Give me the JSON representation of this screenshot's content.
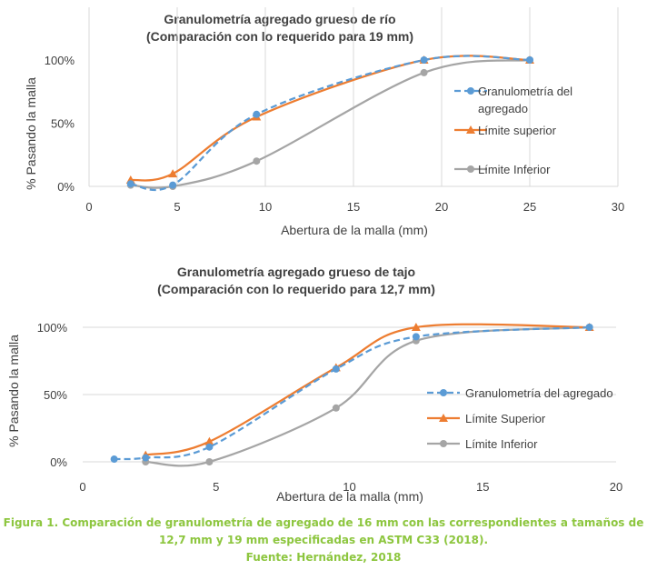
{
  "colors": {
    "aggregate": "#5b9bd5",
    "upper": "#ed7d31",
    "lower": "#a5a5a5",
    "grid": "#d9d9d9",
    "caption": "#8dc63f"
  },
  "chart_data": [
    {
      "type": "line",
      "title": [
        "Granulometría agregado grueso  de río",
        "(Comparación con lo requerido para 19 mm)"
      ],
      "xlabel": "Abertura de la malla (mm)",
      "ylabel": "% Pasando la malla",
      "xlim": [
        0,
        30
      ],
      "ylim": [
        0,
        100
      ],
      "xticks": [
        0,
        5,
        10,
        15,
        20,
        25,
        30
      ],
      "xtick_labels": [
        "0",
        "5",
        "10",
        "15",
        "20",
        "25",
        "30"
      ],
      "yticks": [
        0,
        50,
        100
      ],
      "ytick_labels": [
        "0%",
        "50%",
        "100%"
      ],
      "grid": "vertical",
      "legend_position": "right",
      "series": [
        {
          "name": "Granulometría del agregado",
          "style": "dashed",
          "marker": "circle",
          "x": [
            2.36,
            4.75,
            9.5,
            19,
            25
          ],
          "y": [
            2,
            1,
            57,
            100,
            100
          ]
        },
        {
          "name": "Límite superior",
          "style": "solid",
          "marker": "triangle",
          "x": [
            2.36,
            4.75,
            9.5,
            19,
            25
          ],
          "y": [
            5,
            10,
            55,
            100,
            100
          ]
        },
        {
          "name": "Límite Inferior",
          "style": "solid",
          "marker": "circle",
          "x": [
            2.36,
            4.75,
            9.5,
            19,
            25
          ],
          "y": [
            1,
            0,
            20,
            90,
            100
          ]
        }
      ]
    },
    {
      "type": "line",
      "title": [
        "Granulometría agregado grueso de tajo",
        "(Comparación con lo requerido para 12,7 mm)"
      ],
      "xlabel": "Abertura de la malla (mm)",
      "ylabel": "% Pasando la malla",
      "xlim": [
        0,
        20
      ],
      "ylim": [
        0,
        100
      ],
      "xticks": [
        0,
        5,
        10,
        15,
        20
      ],
      "xtick_labels": [
        "0",
        "5",
        "10",
        "15",
        "20"
      ],
      "yticks": [
        0,
        50,
        100
      ],
      "ytick_labels": [
        "0%",
        "50%",
        "100%"
      ],
      "grid": "horizontal",
      "legend_position": "right",
      "series": [
        {
          "name": "Granulometría del agregado",
          "style": "dashed",
          "marker": "circle",
          "x": [
            1.18,
            2.36,
            4.75,
            9.5,
            12.5,
            19
          ],
          "y": [
            2,
            3,
            11,
            69,
            93,
            100
          ]
        },
        {
          "name": "Límite Superior",
          "style": "solid",
          "marker": "triangle",
          "x": [
            2.36,
            4.75,
            9.5,
            12.5,
            19
          ],
          "y": [
            5,
            15,
            70,
            100,
            100
          ]
        },
        {
          "name": "Límite Inferior",
          "style": "solid",
          "marker": "circle",
          "x": [
            2.36,
            4.75,
            9.5,
            12.5,
            19
          ],
          "y": [
            0,
            0,
            40,
            90,
            100
          ]
        }
      ]
    }
  ],
  "caption": {
    "line1": "Figura 1. Comparación de granulometría de agregado de 16 mm con las correspondientes a tamaños de",
    "line2": "12,7 mm y 19 mm especificadas en ASTM C33 (2018).",
    "line3": "Fuente: Hernández, 2018"
  }
}
